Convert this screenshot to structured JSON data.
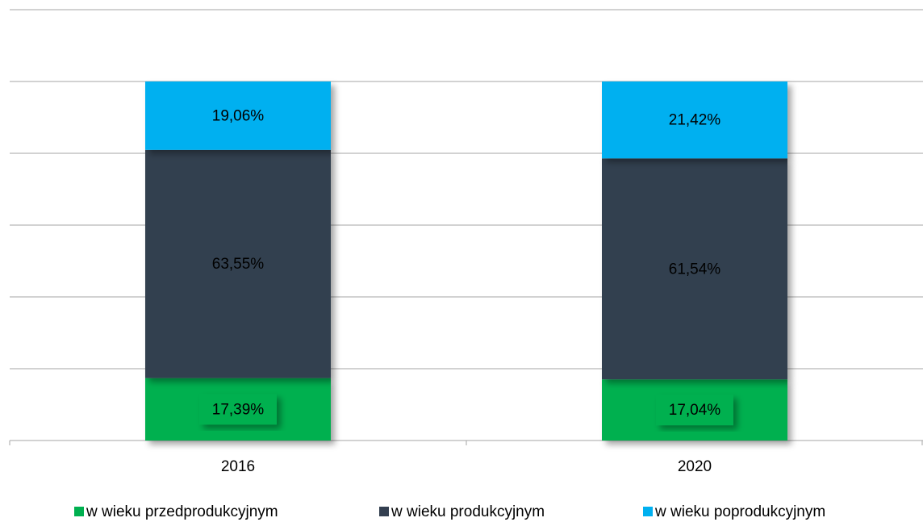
{
  "chart_data": {
    "type": "bar",
    "stacked": true,
    "categories": [
      "2016",
      "2020"
    ],
    "series": [
      {
        "name": "w wieku przedprodukcyjnym",
        "color": "#00b050",
        "values": [
          17.39,
          17.04
        ],
        "value_labels": [
          "17,39%",
          "17,04%"
        ]
      },
      {
        "name": "w wieku produkcyjnym",
        "color": "#333f50",
        "values": [
          63.55,
          61.54
        ],
        "value_labels": [
          "63,55%",
          "61,54%"
        ]
      },
      {
        "name": "w wieku poprodukcyjnym",
        "color": "#00b0f0",
        "values": [
          19.06,
          21.42
        ],
        "value_labels": [
          "19,06%",
          "21,42%"
        ]
      }
    ],
    "ylim": [
      0,
      120
    ],
    "yticks": [
      0,
      20,
      40,
      60,
      80,
      100,
      120
    ],
    "grid": true,
    "legend": "bottom"
  }
}
